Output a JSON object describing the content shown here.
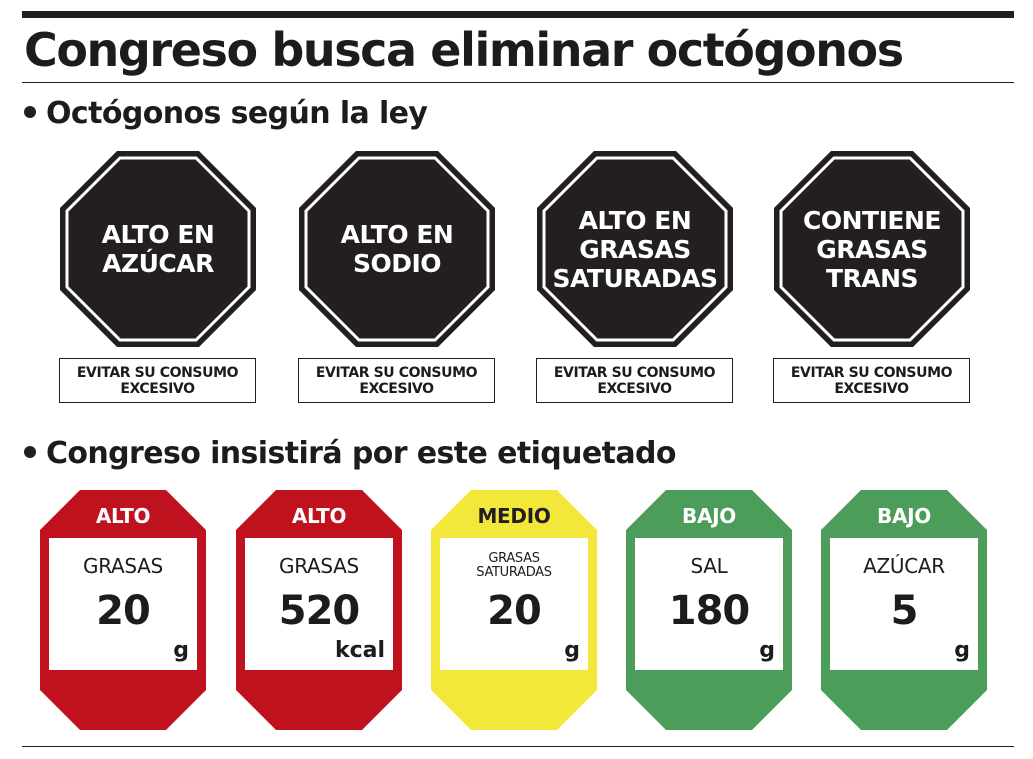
{
  "title": "Congreso busca eliminar octógonos",
  "section1": {
    "heading": "Octógonos según la ley",
    "octagons": [
      {
        "lines": [
          "ALTO EN",
          "AZÚCAR"
        ],
        "warning": [
          "EVITAR SU CONSUMO",
          "EXCESIVO"
        ]
      },
      {
        "lines": [
          "ALTO EN",
          "SODIO"
        ],
        "warning": [
          "EVITAR SU CONSUMO",
          "EXCESIVO"
        ]
      },
      {
        "lines": [
          "ALTO EN",
          "GRASAS",
          "SATURADAS"
        ],
        "warning": [
          "EVITAR SU CONSUMO",
          "EXCESIVO"
        ]
      },
      {
        "lines": [
          "CONTIENE",
          "GRASAS",
          "TRANS"
        ],
        "warning": [
          "EVITAR SU CONSUMO",
          "EXCESIVO"
        ]
      }
    ]
  },
  "section2": {
    "heading": "Congreso insistirá por este etiquetado",
    "labels": [
      {
        "level": "ALTO",
        "color": "#c0111f",
        "nutrient": [
          "GRASAS"
        ],
        "value": "20",
        "unit": "g"
      },
      {
        "level": "ALTO",
        "color": "#c0111f",
        "nutrient": [
          "GRASAS"
        ],
        "value": "520",
        "unit": "kcal"
      },
      {
        "level": "MEDIO",
        "color": "#f3e83a",
        "nutrient": [
          "GRASAS",
          "SATURADAS"
        ],
        "value": "20",
        "unit": "g"
      },
      {
        "level": "BAJO",
        "color": "#4c9c5a",
        "nutrient": [
          "SAL"
        ],
        "value": "180",
        "unit": "g"
      },
      {
        "level": "BAJO",
        "color": "#4c9c5a",
        "nutrient": [
          "AZÚCAR"
        ],
        "value": "5",
        "unit": "g"
      }
    ]
  },
  "colors": {
    "ink": "#231f20",
    "octagon_fill": "#231f20"
  }
}
